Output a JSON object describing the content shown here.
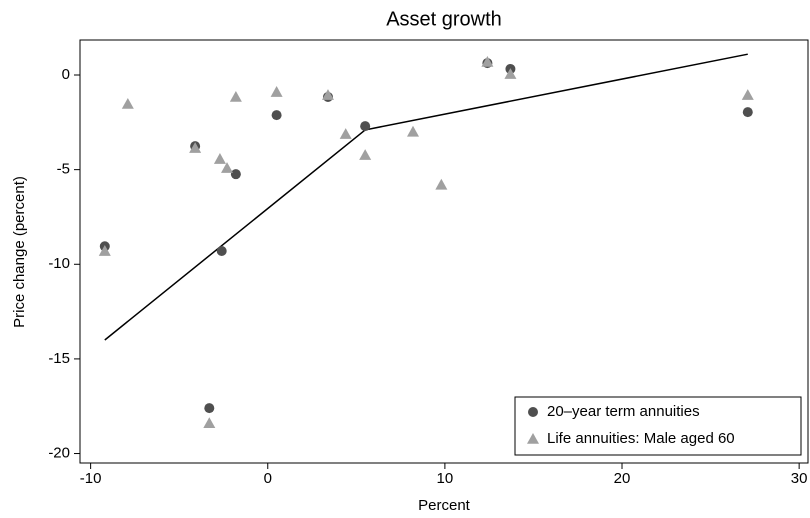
{
  "chart_data": {
    "type": "scatter",
    "title": "Asset growth",
    "x_label": "Percent",
    "y_label": "Price change (percent)",
    "xlim": [
      -10.6,
      30.5
    ],
    "ylim": [
      -20.5,
      1.85
    ],
    "xticks": [
      -10,
      0,
      10,
      20,
      30
    ],
    "yticks": [
      0,
      -5,
      -10,
      -15,
      -20
    ],
    "legend": "lower right",
    "series": [
      {
        "name": "20–year term annuities",
        "color": "#4f4f4f",
        "marker": "circle",
        "x": [
          -9.2,
          -4.1,
          -1.8,
          -2.6,
          -3.3,
          0.5,
          3.4,
          5.5,
          12.4,
          13.7,
          27.1
        ],
        "values": [
          -9.05,
          -3.76,
          -5.24,
          -9.3,
          -17.6,
          -2.12,
          -1.16,
          -2.7,
          0.63,
          0.32,
          -1.96
        ]
      },
      {
        "name": "Life annuities: Male aged 60",
        "color": "#a0a0a0",
        "marker": "triangle",
        "x": [
          -9.2,
          -7.9,
          -4.1,
          -2.7,
          -2.3,
          -1.8,
          -3.3,
          0.5,
          3.4,
          4.4,
          5.5,
          8.2,
          9.8,
          12.4,
          13.7,
          27.1
        ],
        "values": [
          -9.3,
          -1.53,
          -3.86,
          -4.44,
          -4.92,
          -1.16,
          -18.4,
          -0.9,
          -1.06,
          -3.12,
          -4.23,
          -3.0,
          -5.8,
          0.69,
          0.05,
          -1.06
        ]
      }
    ],
    "fit_line": {
      "color": "#000000",
      "x": [
        -9.2,
        5.5,
        27.1
      ],
      "values": [
        -14.0,
        -2.9,
        1.1
      ]
    }
  }
}
